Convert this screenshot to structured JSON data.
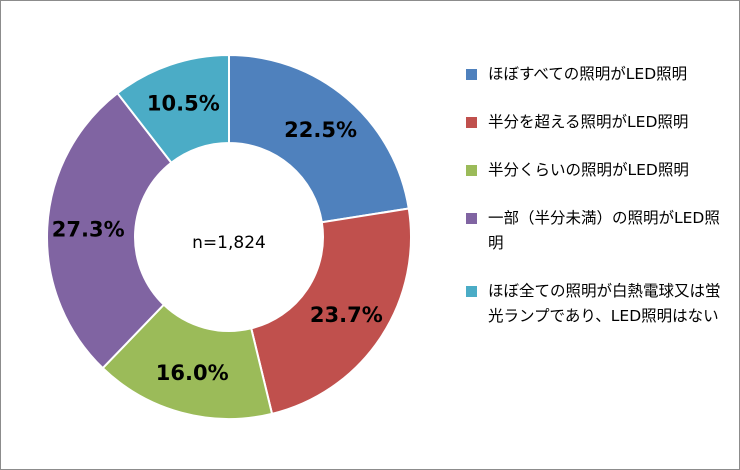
{
  "chart_data": {
    "type": "pie",
    "variant": "donut",
    "title": "",
    "center_label": "n=1,824",
    "categories": [
      "ほぼすべての照明がLED照明",
      "半分を超える照明がLED照明",
      "半分くらいの照明がLED照明",
      "一部（半分未満）の照明がLED照明",
      "ほぼ全ての照明が白熱電球又は蛍光ランプであり、LED照明はない"
    ],
    "values": [
      22.5,
      23.7,
      16.0,
      27.3,
      10.5
    ],
    "value_labels": [
      "22.5%",
      "23.7%",
      "16.0%",
      "27.3%",
      "10.5%"
    ],
    "unit": "%",
    "colors": [
      "#4f81bd",
      "#c0504d",
      "#9bbb59",
      "#8064a2",
      "#4bacc6"
    ],
    "start_angle": "12 o'clock",
    "direction": "clockwise",
    "legend": {
      "placement": "right",
      "items": [
        {
          "label": "ほぼすべての照明がLED照明",
          "color": "#4f81bd"
        },
        {
          "label": "半分を超える照明がLED照明",
          "color": "#c0504d"
        },
        {
          "label": "半分くらいの照明がLED照明",
          "color": "#9bbb59"
        },
        {
          "label": "一部（半分未満）の照明がLED照明",
          "color": "#8064a2"
        },
        {
          "label": "ほぼ全ての照明が白熱電球又は蛍光ランプであり、LED照明はない",
          "color": "#4bacc6"
        }
      ]
    }
  }
}
